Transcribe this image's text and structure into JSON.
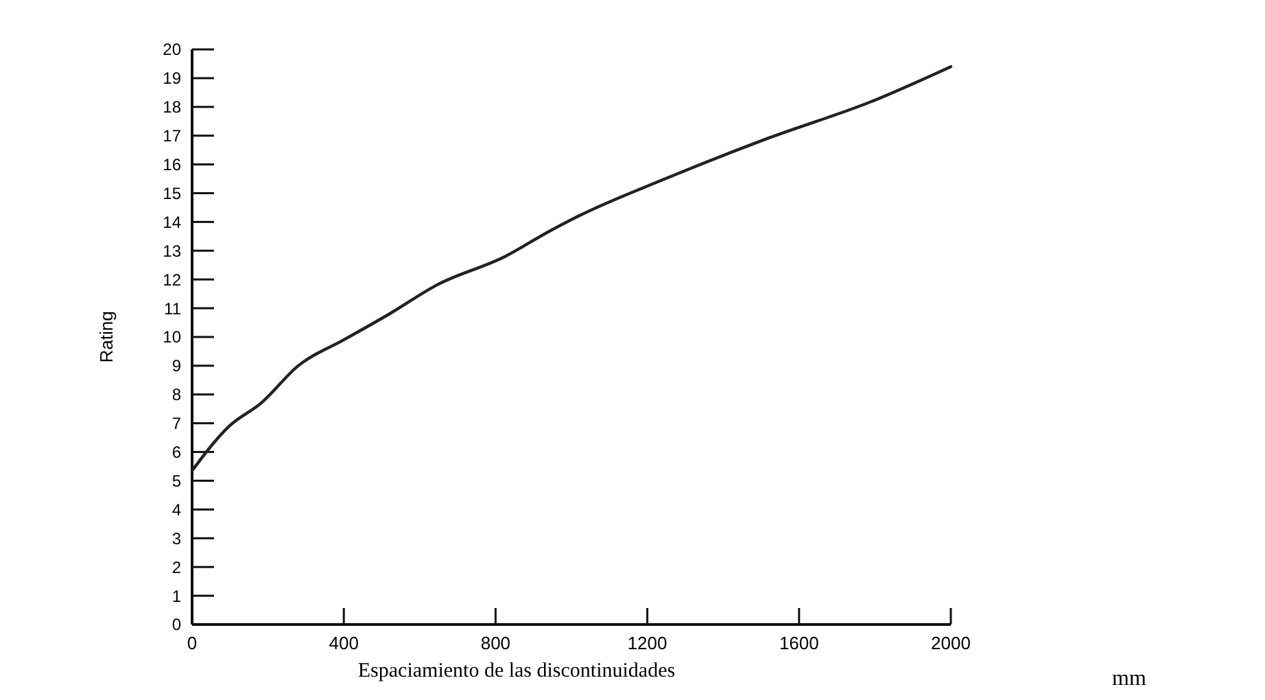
{
  "chart_data": {
    "type": "line",
    "xlabel": "Espaciamiento de las discontinuidades",
    "ylabel": "Rating",
    "annotations": [
      "mm"
    ],
    "x": [
      0,
      98,
      182,
      280,
      400,
      520,
      644,
      825,
      945,
      1018,
      1247,
      1516,
      1793,
      2000
    ],
    "series": [
      {
        "color": "#222222",
        "values": [
          5.35,
          6.9,
          7.7,
          9.0,
          9.9,
          10.8,
          11.8,
          12.8,
          13.7,
          14.2,
          15.5,
          16.9,
          18.2,
          19.4
        ]
      }
    ],
    "xlim": [
      0,
      2000
    ],
    "xticks": [
      0,
      400,
      800,
      1200,
      1600,
      2000
    ],
    "ylim": [
      0,
      20
    ],
    "yticks": [
      0,
      1,
      2,
      3,
      4,
      5,
      6,
      7,
      8,
      9,
      10,
      11,
      12,
      13,
      14,
      15,
      16,
      17,
      18,
      19,
      20
    ],
    "marker": "none",
    "line_style": "solid"
  }
}
